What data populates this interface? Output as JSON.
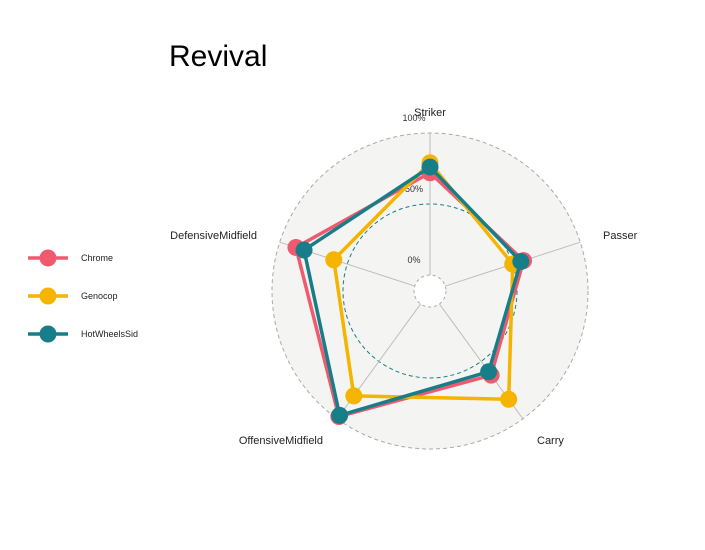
{
  "chart_data": {
    "type": "radar",
    "title": "Revival",
    "axes": [
      "Striker",
      "Passer",
      "Carry",
      "OffensiveMidfield",
      "DefensiveMidfield"
    ],
    "radial_ticks": [
      "0%",
      "50%",
      "100%"
    ],
    "ylim": [
      0,
      100
    ],
    "grid": true,
    "legend_position": "left",
    "series": [
      {
        "name": "Chrome",
        "color": "#F05A6E",
        "values": [
          72,
          58,
          62,
          98,
          88
        ]
      },
      {
        "name": "Genocop",
        "color": "#F5B400",
        "values": [
          79,
          50,
          83,
          80,
          60
        ]
      },
      {
        "name": "HotWheelsSid",
        "color": "#177E89",
        "values": [
          76,
          56,
          59,
          97,
          82
        ]
      }
    ],
    "reference_colors": {
      "panel": "#F4F4F2",
      "outer_ring": "#AAAAAA",
      "mid_ring": "#177E89",
      "spoke": "#BDBDBD"
    }
  }
}
